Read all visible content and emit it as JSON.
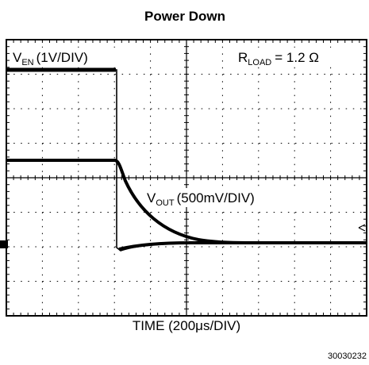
{
  "title": "Power Down",
  "traces": {
    "ven": {
      "symbol": "V",
      "subscript": "EN",
      "scale": "(1V/DIV)"
    },
    "vout": {
      "symbol": "V",
      "subscript": "OUT",
      "scale": "(500mV/DIV)"
    }
  },
  "load": {
    "symbol": "R",
    "subscript": "LOAD",
    "value": "= 1.2 Ω"
  },
  "x_axis_label": "TIME (200μs/DIV)",
  "figure_id": "30030232"
}
